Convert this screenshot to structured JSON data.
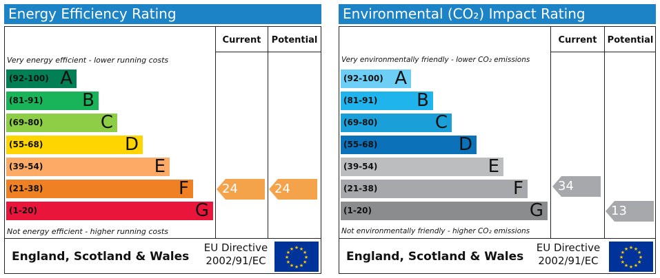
{
  "chart_data": [
    {
      "type": "bar",
      "title": "Energy Efficiency Rating",
      "columns": [
        "Current",
        "Potential"
      ],
      "top_note": "Very energy efficient - lower running costs",
      "bottom_note": "Not energy efficient - higher running costs",
      "bands": [
        {
          "range": "(92-100)",
          "letter": "A",
          "color": "#008054"
        },
        {
          "range": "(81-91)",
          "letter": "B",
          "color": "#19b459"
        },
        {
          "range": "(69-80)",
          "letter": "C",
          "color": "#8dce46"
        },
        {
          "range": "(55-68)",
          "letter": "D",
          "color": "#ffd500"
        },
        {
          "range": "(39-54)",
          "letter": "E",
          "color": "#fcaa65"
        },
        {
          "range": "(21-38)",
          "letter": "F",
          "color": "#ef8023"
        },
        {
          "range": "(1-20)",
          "letter": "G",
          "color": "#e9153b"
        }
      ],
      "current": {
        "value": "24",
        "band": "F",
        "color": "#f5a34b"
      },
      "potential": {
        "value": "24",
        "band": "F",
        "color": "#f5a34b"
      },
      "footer": {
        "region": "England, Scotland & Wales",
        "directive_line1": "EU Directive",
        "directive_line2": "2002/91/EC"
      }
    },
    {
      "type": "bar",
      "title": "Environmental (CO₂) Impact Rating",
      "columns": [
        "Current",
        "Potential"
      ],
      "top_note": "Very environmentally friendly - lower CO₂ emissions",
      "bottom_note": "Not environmentally friendly - higher CO₂ emissions",
      "bands": [
        {
          "range": "(92-100)",
          "letter": "A",
          "color": "#6dcff6"
        },
        {
          "range": "(81-91)",
          "letter": "B",
          "color": "#20b4ed"
        },
        {
          "range": "(69-80)",
          "letter": "C",
          "color": "#1a9fd8"
        },
        {
          "range": "(55-68)",
          "letter": "D",
          "color": "#0b72b9"
        },
        {
          "range": "(39-54)",
          "letter": "E",
          "color": "#bbbdbf"
        },
        {
          "range": "(21-38)",
          "letter": "F",
          "color": "#a6a8ab"
        },
        {
          "range": "(1-20)",
          "letter": "G",
          "color": "#8b8c8e"
        }
      ],
      "current": {
        "value": "34",
        "band": "F",
        "color": "#a6a8ab"
      },
      "potential": {
        "value": "13",
        "band": "G",
        "color": "#a6a8ab"
      },
      "footer": {
        "region": "England, Scotland & Wales",
        "directive_line1": "EU Directive",
        "directive_line2": "2002/91/EC"
      }
    }
  ]
}
